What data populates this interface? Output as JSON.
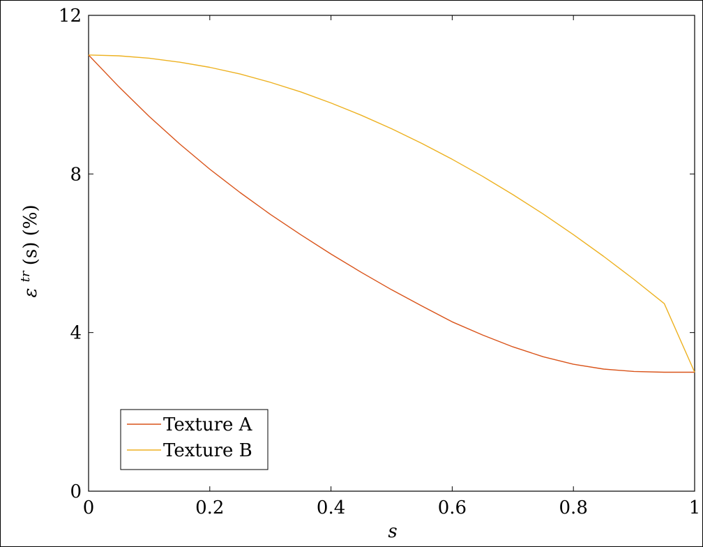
{
  "chart_data": {
    "type": "line",
    "title": "",
    "xlabel": "s",
    "ylabel": {
      "base": "ε",
      "sup": "tr",
      "rest": "(s) (%)"
    },
    "xlim": [
      0,
      1
    ],
    "ylim": [
      0,
      12
    ],
    "xticks": [
      "0",
      "0.2",
      "0.4",
      "0.6",
      "0.8",
      "1"
    ],
    "yticks": [
      "0",
      "4",
      "8",
      "12"
    ],
    "grid": false,
    "legend_position": "bottom-left",
    "series": [
      {
        "name": "Texture A",
        "color": "#d95319",
        "x": [
          0,
          0.05,
          0.1,
          0.15,
          0.2,
          0.25,
          0.3,
          0.35,
          0.4,
          0.45,
          0.5,
          0.55,
          0.6,
          0.65,
          0.7,
          0.75,
          0.8,
          0.85,
          0.9,
          0.95,
          1
        ],
        "y": [
          11.0,
          10.2,
          9.45,
          8.76,
          8.12,
          7.53,
          6.98,
          6.47,
          5.98,
          5.52,
          5.08,
          4.67,
          4.27,
          3.94,
          3.64,
          3.39,
          3.2,
          3.08,
          3.02,
          3.0,
          3.0
        ]
      },
      {
        "name": "Texture B",
        "color": "#edb120",
        "x": [
          0,
          0.05,
          0.1,
          0.15,
          0.2,
          0.25,
          0.3,
          0.35,
          0.4,
          0.45,
          0.5,
          0.55,
          0.6,
          0.65,
          0.7,
          0.75,
          0.8,
          0.85,
          0.9,
          0.95,
          1
        ],
        "y": [
          11.0,
          10.98,
          10.92,
          10.82,
          10.69,
          10.52,
          10.31,
          10.07,
          9.79,
          9.48,
          9.14,
          8.77,
          8.37,
          7.94,
          7.48,
          6.99,
          6.47,
          5.92,
          5.34,
          4.73,
          3.0
        ]
      }
    ]
  }
}
